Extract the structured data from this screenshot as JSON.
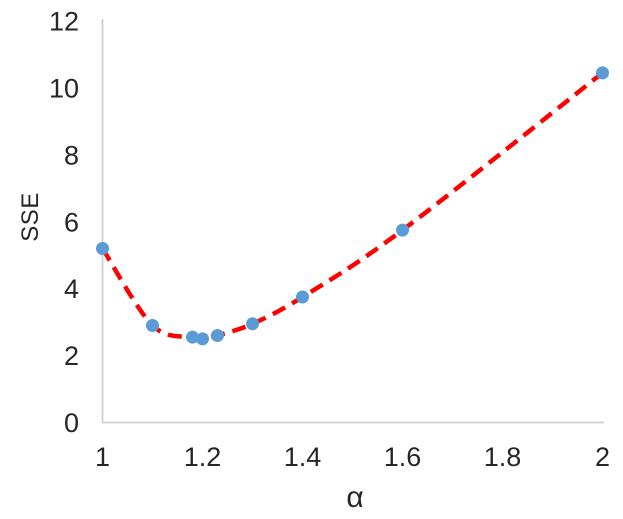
{
  "chart_data": {
    "type": "scatter",
    "title": "",
    "xlabel": "α",
    "ylabel": "SSE",
    "xlim": [
      1,
      2
    ],
    "ylim": [
      0,
      12
    ],
    "grid": false,
    "legend": "none",
    "x_ticks": [
      {
        "v": 1.0,
        "label": "1"
      },
      {
        "v": 1.2,
        "label": "1.2"
      },
      {
        "v": 1.4,
        "label": "1.4"
      },
      {
        "v": 1.6,
        "label": "1.6"
      },
      {
        "v": 1.8,
        "label": "1.8"
      },
      {
        "v": 2.0,
        "label": "2"
      }
    ],
    "y_ticks": [
      {
        "v": 0,
        "label": "0"
      },
      {
        "v": 2,
        "label": "2"
      },
      {
        "v": 4,
        "label": "4"
      },
      {
        "v": 6,
        "label": "6"
      },
      {
        "v": 8,
        "label": "8"
      },
      {
        "v": 10,
        "label": "10"
      },
      {
        "v": 12,
        "label": "12"
      }
    ],
    "points": [
      {
        "x": 1.0,
        "y": 5.2
      },
      {
        "x": 1.1,
        "y": 2.9
      },
      {
        "x": 1.18,
        "y": 2.55
      },
      {
        "x": 1.2,
        "y": 2.5
      },
      {
        "x": 1.23,
        "y": 2.6
      },
      {
        "x": 1.3,
        "y": 2.95
      },
      {
        "x": 1.4,
        "y": 3.75
      },
      {
        "x": 1.6,
        "y": 5.75
      },
      {
        "x": 2.0,
        "y": 10.45
      }
    ],
    "trendline": {
      "style": "dashed",
      "color": "#FF0000",
      "passes_through_points": true
    },
    "colors": {
      "marker": "#5B9BD5",
      "line": "#FF0000",
      "axis": "#CFCFCF",
      "text": "#262626"
    }
  }
}
